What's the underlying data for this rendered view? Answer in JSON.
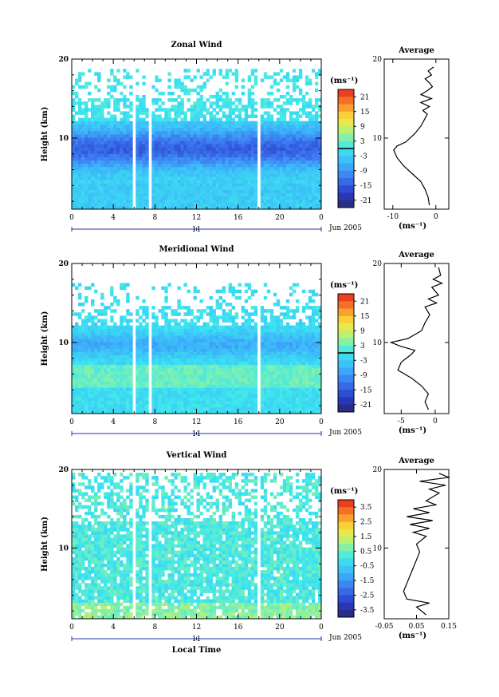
{
  "chart_data": [
    {
      "type": "heatmap",
      "title": "Zonal Wind",
      "ylabel": "Height (km)",
      "xlabel": "",
      "x_ticks": [
        "0",
        "4",
        "8",
        "12",
        "16",
        "20",
        "0"
      ],
      "y_ticks": [
        "20",
        "10"
      ],
      "xlim": [
        0,
        24
      ],
      "ylim": [
        1,
        20
      ],
      "date_day": "11",
      "date_label": "Jun 2005",
      "colorbar": {
        "unit": "(ms⁻¹)",
        "ticks": [
          "21",
          "15",
          "9",
          "3",
          "-3",
          "-9",
          "-15",
          "-21"
        ],
        "range": [
          -24,
          24
        ]
      },
      "average_profile": {
        "title": "Average",
        "xlabel": "(ms⁻¹)",
        "x_ticks": [
          "-10",
          "0"
        ],
        "y_ticks": [
          "20",
          "10"
        ],
        "xlim": [
          -12,
          3
        ],
        "height_km": [
          1.5,
          2.5,
          3.5,
          4.5,
          5.5,
          6.5,
          7.5,
          8.5,
          9.0,
          9.5,
          10.5,
          11.5,
          12.5,
          13.0,
          13.5,
          14.0,
          14.5,
          15.0,
          15.5,
          16.0,
          16.5,
          17.0,
          17.5,
          18.0,
          18.5,
          19.0
        ],
        "wind": [
          -1.5,
          -1.8,
          -2.5,
          -3.5,
          -5.5,
          -7.5,
          -9.0,
          -9.8,
          -9.0,
          -7.0,
          -5.0,
          -3.5,
          -2.5,
          -2.0,
          -3.0,
          -1.5,
          -3.5,
          -1.0,
          -3.5,
          -2.0,
          -0.8,
          -1.5,
          -2.5,
          -1.0,
          -1.8,
          -0.5
        ]
      }
    },
    {
      "type": "heatmap",
      "title": "Meridional Wind",
      "ylabel": "Height (km)",
      "xlabel": "",
      "x_ticks": [
        "0",
        "4",
        "8",
        "12",
        "16",
        "20",
        "0"
      ],
      "y_ticks": [
        "20",
        "10"
      ],
      "xlim": [
        0,
        24
      ],
      "ylim": [
        1,
        20
      ],
      "date_day": "11",
      "date_label": "Jun 2005",
      "colorbar": {
        "unit": "(ms⁻¹)",
        "ticks": [
          "21",
          "15",
          "9",
          "3",
          "-3",
          "-9",
          "-15",
          "-21"
        ],
        "range": [
          -24,
          24
        ]
      },
      "average_profile": {
        "title": "Average",
        "xlabel": "(ms⁻¹)",
        "x_ticks": [
          "-5",
          "0"
        ],
        "y_ticks": [
          "20",
          "10"
        ],
        "xlim": [
          -7.5,
          2
        ],
        "height_km": [
          1.5,
          2.5,
          3.5,
          4.5,
          5.5,
          6.5,
          7.5,
          8.5,
          9.0,
          9.5,
          10.0,
          10.5,
          11.5,
          12.5,
          13.5,
          14.5,
          15.0,
          15.5,
          16.0,
          17.0,
          17.5,
          18.0,
          18.5,
          19.5
        ],
        "wind": [
          -1.0,
          -1.5,
          -1.0,
          -2.0,
          -3.5,
          -5.5,
          -5.0,
          -3.5,
          -3.0,
          -5.0,
          -6.5,
          -4.0,
          -2.0,
          -1.5,
          -0.8,
          -1.5,
          0.2,
          -1.0,
          0.5,
          -0.5,
          1.0,
          -0.3,
          0.8,
          0.5
        ]
      }
    },
    {
      "type": "heatmap",
      "title": "Vertical Wind",
      "ylabel": "Height (km)",
      "xlabel": "Local Time",
      "x_ticks": [
        "0",
        "4",
        "8",
        "12",
        "16",
        "20",
        "0"
      ],
      "y_ticks": [
        "20",
        "10"
      ],
      "xlim": [
        0,
        24
      ],
      "ylim": [
        1,
        20
      ],
      "date_day": "11",
      "date_label": "Jun 2005",
      "colorbar": {
        "unit": "(ms⁻¹)",
        "ticks": [
          "3.5",
          "2.5",
          "1.5",
          "0.5",
          "-0.5",
          "-1.5",
          "-2.5",
          "-3.5"
        ],
        "range": [
          -4,
          4
        ]
      },
      "average_profile": {
        "title": "Average",
        "xlabel": "(ms⁻¹)",
        "x_ticks": [
          "-0.05",
          "0.05",
          "0.15"
        ],
        "y_ticks": [
          "20",
          "10"
        ],
        "xlim": [
          -0.05,
          0.15
        ],
        "height_km": [
          1.5,
          2.5,
          3.0,
          3.5,
          4.5,
          5.5,
          6.5,
          7.5,
          8.5,
          9.5,
          10.5,
          11.5,
          12.0,
          12.5,
          13.0,
          13.5,
          14.0,
          14.5,
          15.0,
          15.5,
          16.0,
          17.0,
          17.5,
          18.0,
          18.5,
          19.0,
          19.5
        ],
        "wind": [
          0.08,
          0.05,
          0.09,
          0.02,
          0.01,
          0.02,
          0.03,
          0.04,
          0.05,
          0.06,
          0.05,
          0.08,
          0.04,
          0.09,
          0.03,
          0.1,
          0.02,
          0.09,
          0.04,
          0.11,
          0.08,
          0.12,
          0.09,
          0.14,
          0.06,
          0.15,
          0.12
        ]
      }
    }
  ]
}
